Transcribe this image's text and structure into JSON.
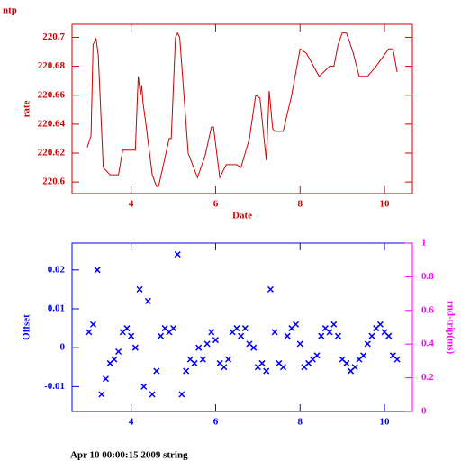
{
  "chart_data": [
    {
      "type": "line",
      "title": "ntp",
      "xlabel": "Date",
      "ylabel": "rate",
      "color": "#d00000",
      "xlim": [
        2.6,
        10.66
      ],
      "xticks": [
        4,
        6,
        8,
        10
      ],
      "ylim": [
        220.592,
        220.709
      ],
      "yticks": [
        220.6,
        220.62,
        220.64,
        220.66,
        220.68,
        220.7
      ],
      "x": [
        2.96,
        3.05,
        3.1,
        3.17,
        3.22,
        3.34,
        3.5,
        3.7,
        3.8,
        4.1,
        4.15,
        4.17,
        4.22,
        4.25,
        4.28,
        4.35,
        4.5,
        4.6,
        4.65,
        4.75,
        4.9,
        4.95,
        5.05,
        5.1,
        5.15,
        5.35,
        5.57,
        5.75,
        5.9,
        5.95,
        6.1,
        6.25,
        6.5,
        6.6,
        6.8,
        6.95,
        7.05,
        7.2,
        7.27,
        7.35,
        7.4,
        7.6,
        7.8,
        8.0,
        8.15,
        8.45,
        8.7,
        8.8,
        8.9,
        9.0,
        9.1,
        9.25,
        9.4,
        9.6,
        9.8,
        10.1,
        10.2,
        10.3
      ],
      "values": [
        220.624,
        220.632,
        220.695,
        220.699,
        220.688,
        220.61,
        220.605,
        220.605,
        220.622,
        220.622,
        220.66,
        220.673,
        220.66,
        220.667,
        220.655,
        220.64,
        220.605,
        220.597,
        220.597,
        220.61,
        220.63,
        220.63,
        220.7,
        220.703,
        220.7,
        220.62,
        220.603,
        220.618,
        220.638,
        220.638,
        220.603,
        220.612,
        220.612,
        220.61,
        220.63,
        220.66,
        220.658,
        220.615,
        220.663,
        220.637,
        220.635,
        220.635,
        220.66,
        220.692,
        220.689,
        220.673,
        220.68,
        220.68,
        220.695,
        220.703,
        220.703,
        220.69,
        220.673,
        220.673,
        220.68,
        220.692,
        220.692,
        220.676
      ]
    },
    {
      "type": "scatter",
      "ylabel": "Offset",
      "y2label": "rnd-trip(ms)",
      "color": "#0000ff",
      "y2color": "#ff00ff",
      "xlim": [
        2.6,
        10.66
      ],
      "xticks": [
        4,
        6,
        8,
        10
      ],
      "ylim": [
        -0.0164,
        0.0269
      ],
      "yticks": [
        -0.01,
        0,
        0.01,
        0.02
      ],
      "y2lim": [
        0,
        1
      ],
      "y2ticks": [
        0,
        0.2,
        0.4,
        0.6,
        0.8,
        1
      ],
      "x": [
        3.0,
        3.1,
        3.2,
        3.3,
        3.4,
        3.5,
        3.6,
        3.7,
        3.8,
        3.9,
        4.0,
        4.1,
        4.2,
        4.3,
        4.4,
        4.5,
        4.6,
        4.7,
        4.8,
        4.9,
        5.0,
        5.1,
        5.2,
        5.3,
        5.4,
        5.5,
        5.6,
        5.7,
        5.8,
        5.9,
        6.0,
        6.1,
        6.2,
        6.3,
        6.4,
        6.5,
        6.6,
        6.7,
        6.8,
        6.9,
        7.0,
        7.1,
        7.2,
        7.3,
        7.4,
        7.5,
        7.6,
        7.7,
        7.8,
        7.9,
        8.0,
        8.1,
        8.2,
        8.3,
        8.4,
        8.5,
        8.6,
        8.7,
        8.8,
        8.9,
        9.0,
        9.1,
        9.2,
        9.3,
        9.4,
        9.5,
        9.6,
        9.7,
        9.8,
        9.9,
        10.0,
        10.1,
        10.2,
        10.3
      ],
      "values": [
        0.004,
        0.006,
        0.02,
        -0.012,
        -0.008,
        -0.004,
        -0.003,
        -0.001,
        0.004,
        0.005,
        0.003,
        0.0,
        0.015,
        -0.01,
        0.012,
        -0.012,
        -0.006,
        0.003,
        0.005,
        0.004,
        0.005,
        0.024,
        -0.012,
        -0.006,
        -0.003,
        -0.004,
        0.0,
        -0.003,
        0.001,
        0.004,
        0.002,
        -0.004,
        -0.005,
        -0.003,
        0.004,
        0.005,
        0.003,
        0.005,
        0.001,
        0.0,
        -0.005,
        -0.004,
        -0.006,
        0.015,
        0.004,
        -0.004,
        -0.005,
        0.003,
        0.005,
        0.006,
        0.001,
        -0.005,
        -0.004,
        -0.003,
        -0.002,
        0.003,
        0.005,
        0.004,
        0.006,
        0.003,
        -0.003,
        -0.004,
        -0.006,
        -0.005,
        -0.003,
        -0.002,
        0.001,
        0.003,
        0.005,
        0.006,
        0.004,
        0.003,
        -0.002,
        -0.003
      ]
    }
  ],
  "footer": "Apr 10 00:00:15 2009 string"
}
